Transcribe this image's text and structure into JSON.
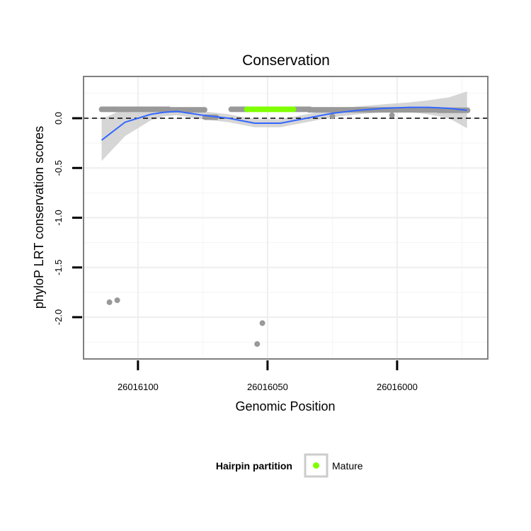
{
  "chart_data": {
    "type": "scatter",
    "title": "Conservation",
    "xlabel": "Genomic Position",
    "ylabel": "phyloP LRT conservation scores",
    "x_reversed": true,
    "xlim": [
      26016121,
      26015965
    ],
    "ylim": [
      -2.42,
      0.42
    ],
    "x_ticks": [
      26016100,
      26016050,
      26016000
    ],
    "x_tick_labels": [
      "26016100",
      "26016050",
      "26016000"
    ],
    "y_ticks": [
      0.0,
      -0.5,
      -1.0,
      -1.5,
      -2.0
    ],
    "y_tick_labels": [
      "0.0",
      "-0.5",
      "-1.0",
      "-1.5",
      "-2.0"
    ],
    "reference_line": {
      "y": 0,
      "style": "dashed",
      "color": "#000000"
    },
    "grid": true,
    "legend": {
      "title": "Hairpin partition",
      "position": "bottom",
      "entries": [
        {
          "label": "Mature",
          "color": "#7fff00"
        }
      ]
    },
    "series": [
      {
        "kind": "points",
        "color": "#999999",
        "groups": [
          {
            "x_from": 26016114,
            "x_to": 26016088,
            "y": 0.09,
            "step": 0.7
          },
          {
            "x_from": 26016089,
            "x_to": 26016074,
            "y": 0.085,
            "step": 0.7
          },
          {
            "x_from": 26016074,
            "x_to": 26016070,
            "y": 0.01,
            "step": 0.7
          },
          {
            "x_from": 26016064,
            "x_to": 26016058,
            "y": 0.09,
            "step": 0.7
          },
          {
            "x_from": 26016040,
            "x_to": 26016034,
            "y": 0.09,
            "step": 0.7
          },
          {
            "x_from": 26016034,
            "x_to": 26015984,
            "y": 0.085,
            "step": 0.7
          },
          {
            "x_from": 26015984,
            "x_to": 26015973,
            "y": 0.08,
            "step": 0.7
          }
        ],
        "points": [
          {
            "x": 26016025,
            "y": 0.02
          },
          {
            "x": 26016002,
            "y": 0.03
          },
          {
            "x": 26016111,
            "y": -1.85
          },
          {
            "x": 26016108,
            "y": -1.83
          },
          {
            "x": 26016054,
            "y": -2.27
          },
          {
            "x": 26016052,
            "y": -2.06
          }
        ]
      },
      {
        "kind": "points",
        "name": "Mature",
        "color": "#7fff00",
        "groups": [
          {
            "x_from": 26016058,
            "x_to": 26016040,
            "y": 0.09,
            "step": 0.6
          }
        ]
      },
      {
        "kind": "smooth",
        "color": "#3366ff",
        "ribbon_color": "#cccccc",
        "x": [
          26016114,
          26016105,
          26016095,
          26016090,
          26016085,
          26016075,
          26016065,
          26016055,
          26016045,
          26016035,
          26016025,
          26016015,
          26016005,
          26015995,
          26015988,
          26015980,
          26015973
        ],
        "y": [
          -0.22,
          -0.04,
          0.04,
          0.06,
          0.07,
          0.03,
          0.0,
          -0.05,
          -0.05,
          0.0,
          0.05,
          0.08,
          0.1,
          0.11,
          0.11,
          0.1,
          0.08
        ],
        "lower": [
          -0.43,
          -0.18,
          -0.02,
          0.02,
          0.03,
          -0.01,
          -0.04,
          -0.09,
          -0.09,
          -0.04,
          0.01,
          0.04,
          0.06,
          0.06,
          0.04,
          0.0,
          -0.1
        ],
        "upper": [
          -0.01,
          0.1,
          0.1,
          0.1,
          0.11,
          0.07,
          0.04,
          -0.01,
          -0.01,
          0.04,
          0.09,
          0.12,
          0.14,
          0.16,
          0.18,
          0.21,
          0.27
        ]
      }
    ]
  }
}
